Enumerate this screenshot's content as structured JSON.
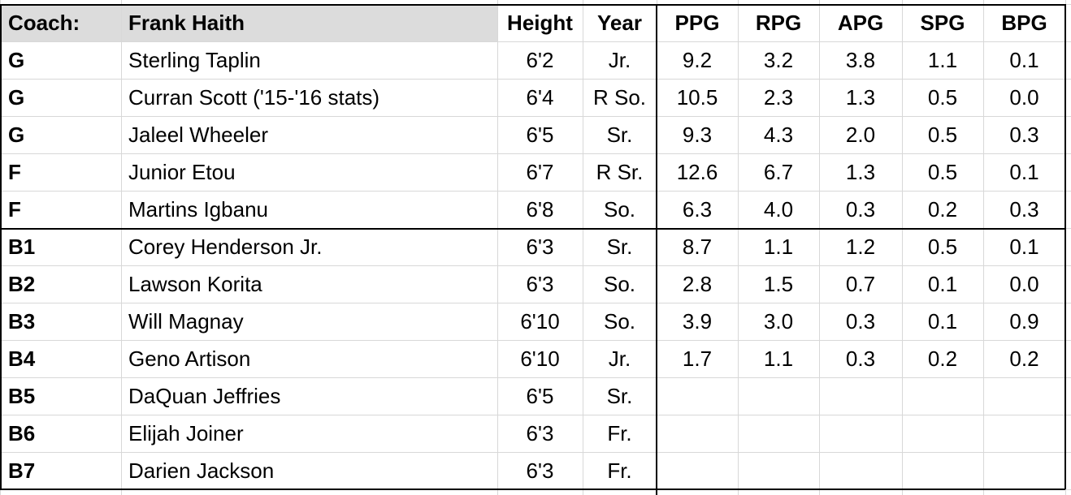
{
  "header": {
    "coach_label": "Coach:",
    "coach_name": "Frank Haith",
    "columns": [
      "Height",
      "Year",
      "PPG",
      "RPG",
      "APG",
      "SPG",
      "BPG"
    ]
  },
  "rows": [
    {
      "pos": "G",
      "name": "Sterling Taplin",
      "height": "6'2",
      "year": "Jr.",
      "ppg": "9.2",
      "rpg": "3.2",
      "apg": "3.8",
      "spg": "1.1",
      "bpg": "0.1"
    },
    {
      "pos": "G",
      "name": "Curran Scott ('15-'16 stats)",
      "height": "6'4",
      "year": "R So.",
      "ppg": "10.5",
      "rpg": "2.3",
      "apg": "1.3",
      "spg": "0.5",
      "bpg": "0.0"
    },
    {
      "pos": "G",
      "name": "Jaleel Wheeler",
      "height": "6'5",
      "year": "Sr.",
      "ppg": "9.3",
      "rpg": "4.3",
      "apg": "2.0",
      "spg": "0.5",
      "bpg": "0.3"
    },
    {
      "pos": "F",
      "name": "Junior Etou",
      "height": "6'7",
      "year": "R Sr.",
      "ppg": "12.6",
      "rpg": "6.7",
      "apg": "1.3",
      "spg": "0.5",
      "bpg": "0.1"
    },
    {
      "pos": "F",
      "name": "Martins Igbanu",
      "height": "6'8",
      "year": "So.",
      "ppg": "6.3",
      "rpg": "4.0",
      "apg": "0.3",
      "spg": "0.2",
      "bpg": "0.3"
    },
    {
      "pos": "B1",
      "name": "Corey Henderson Jr.",
      "height": "6'3",
      "year": "Sr.",
      "ppg": "8.7",
      "rpg": "1.1",
      "apg": "1.2",
      "spg": "0.5",
      "bpg": "0.1"
    },
    {
      "pos": "B2",
      "name": "Lawson Korita",
      "height": "6'3",
      "year": "So.",
      "ppg": "2.8",
      "rpg": "1.5",
      "apg": "0.7",
      "spg": "0.1",
      "bpg": "0.0"
    },
    {
      "pos": "B3",
      "name": "Will Magnay",
      "height": "6'10",
      "year": "So.",
      "ppg": "3.9",
      "rpg": "3.0",
      "apg": "0.3",
      "spg": "0.1",
      "bpg": "0.9"
    },
    {
      "pos": "B4",
      "name": "Geno Artison",
      "height": "6'10",
      "year": "Jr.",
      "ppg": "1.7",
      "rpg": "1.1",
      "apg": "0.3",
      "spg": "0.2",
      "bpg": "0.2"
    },
    {
      "pos": "B5",
      "name": "DaQuan Jeffries",
      "height": "6'5",
      "year": "Sr.",
      "ppg": "",
      "rpg": "",
      "apg": "",
      "spg": "",
      "bpg": ""
    },
    {
      "pos": "B6",
      "name": "Elijah Joiner",
      "height": "6'3",
      "year": "Fr.",
      "ppg": "",
      "rpg": "",
      "apg": "",
      "spg": "",
      "bpg": ""
    },
    {
      "pos": "B7",
      "name": "Darien Jackson",
      "height": "6'3",
      "year": "Fr.",
      "ppg": "",
      "rpg": "",
      "apg": "",
      "spg": "",
      "bpg": ""
    }
  ]
}
